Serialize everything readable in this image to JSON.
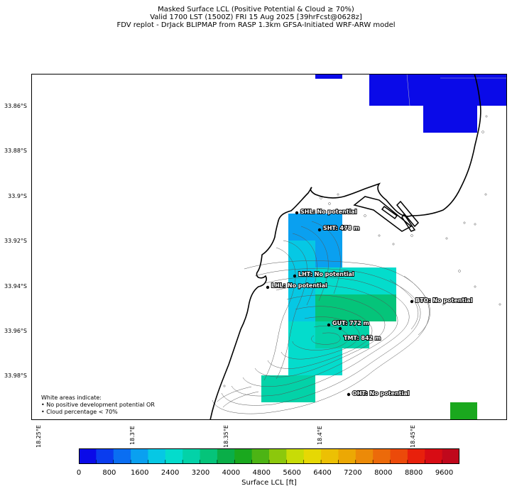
{
  "title": {
    "line1": "Masked Surface LCL (Positive Potential & Cloud ≥ 70%)",
    "line2": "Valid 1700 LST (1500Z) FRI 15 Aug 2025 [39hrFcst@0628z]",
    "line3": "FDV replot - DrJack BLIPMAP from RASP 1.3km GFSA-Initiated WRF-ARW model"
  },
  "axes": {
    "y_ticks": [
      "33.86°S",
      "33.88°S",
      "33.9°S",
      "33.92°S",
      "33.94°S",
      "33.96°S",
      "33.98°S"
    ],
    "x_ticks": [
      "18.25°E",
      "18.3°E",
      "18.35°E",
      "18.4°E",
      "18.45°E"
    ]
  },
  "stations": [
    {
      "code": "SHL",
      "label": "SHL: No potential"
    },
    {
      "code": "SHT",
      "label": "SHT: 478 m"
    },
    {
      "code": "LHT",
      "label": "LHT: No potential"
    },
    {
      "code": "LHL",
      "label": "LHL: No potential"
    },
    {
      "code": "BTO",
      "label": "BTO: No potential"
    },
    {
      "code": "GUT",
      "label": "GUT: 772 m"
    },
    {
      "code": "TMT",
      "label": "TMT: 842 m"
    },
    {
      "code": "OHT",
      "label": "OHT: No potential"
    }
  ],
  "note": {
    "line1": "White areas indicate:",
    "line2": "• No positive development potential OR",
    "line3": "• Cloud percentage < 70%"
  },
  "colorbar": {
    "title": "Surface LCL [ft]",
    "tick_labels": [
      "0",
      "800",
      "1600",
      "2400",
      "3200",
      "4000",
      "4800",
      "5600",
      "6400",
      "7200",
      "8000",
      "8800",
      "9600"
    ],
    "colors": [
      "#0a0ae8",
      "#0a3cee",
      "#0a6ef2",
      "#0aa0f0",
      "#06c8e4",
      "#04dccc",
      "#03d2a8",
      "#05c47a",
      "#0aae48",
      "#1aa81e",
      "#4cb414",
      "#8cc80c",
      "#c8dc06",
      "#e6d804",
      "#ecc004",
      "#eca804",
      "#ec8a08",
      "#ec6a0a",
      "#ec4a0a",
      "#e8200c",
      "#d80c14",
      "#c0081c"
    ]
  },
  "chart_data": {
    "type": "heatmap",
    "variable": "Surface LCL",
    "units": "ft",
    "value_range": [
      0,
      10000
    ],
    "lat_range": [
      "33.85°S",
      "33.995°S"
    ],
    "lon_range": [
      "18.24°E",
      "18.49°E"
    ],
    "cells": [
      {
        "lat_from": -33.85,
        "lat_to": -33.853,
        "lon_from": 18.389,
        "lon_to": 18.404,
        "lcl_ft": 100
      },
      {
        "lat_from": -33.85,
        "lat_to": -33.864,
        "lon_from": 18.42,
        "lon_to": 18.492,
        "lcl_ft": 100
      },
      {
        "lat_from": -33.864,
        "lat_to": -33.876,
        "lon_from": 18.449,
        "lon_to": 18.477,
        "lcl_ft": 100
      },
      {
        "lat_from": -33.912,
        "lat_to": -33.924,
        "lon_from": 18.375,
        "lon_to": 18.404,
        "lcl_ft": 1500
      },
      {
        "lat_from": -33.924,
        "lat_to": -33.948,
        "lon_from": 18.375,
        "lon_to": 18.39,
        "lcl_ft": 2000
      },
      {
        "lat_from": -33.936,
        "lat_to": -33.948,
        "lon_from": 18.39,
        "lon_to": 18.432,
        "lcl_ft": 2500
      },
      {
        "lat_from": -33.948,
        "lat_to": -33.96,
        "lon_from": 18.39,
        "lon_to": 18.432,
        "lcl_ft": 3000
      },
      {
        "lat_from": -33.96,
        "lat_to": -33.972,
        "lon_from": 18.39,
        "lon_to": 18.418,
        "lcl_ft": 3200
      },
      {
        "lat_from": -33.972,
        "lat_to": -33.984,
        "lon_from": 18.375,
        "lon_to": 18.404,
        "lcl_ft": 2800
      },
      {
        "lat_from": -33.984,
        "lat_to": -33.996,
        "lon_from": 18.361,
        "lon_to": 18.39,
        "lcl_ft": 2900
      },
      {
        "lat_from": -33.987,
        "lat_to": -33.996,
        "lon_from": 18.463,
        "lon_to": 18.477,
        "lcl_ft": 3800
      }
    ]
  }
}
